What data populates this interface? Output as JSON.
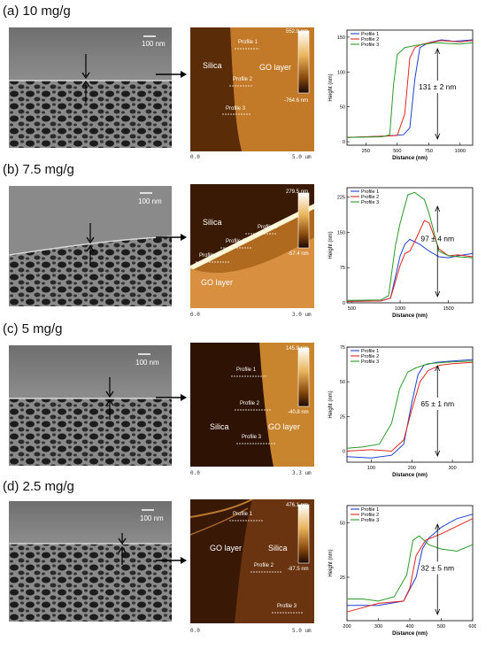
{
  "panels": [
    {
      "label": "(a) 10 mg/g",
      "sem_scale": "100 nm",
      "afm": {
        "max": "552.9 nm",
        "min": "-764.6 nm",
        "axis_left": "0.0",
        "axis_right": "5.0 um",
        "labels": [
          "Silica",
          "GO layer"
        ],
        "profiles": [
          "Profile 1",
          "Profile 2",
          "Profile 3"
        ]
      },
      "plot": {
        "legend": [
          "Profile 1",
          "Profile 2",
          "Profile 3"
        ],
        "annotation": "131 ± 2 nm",
        "xlabel": "Distance (nm)",
        "ylabel": "Height (nm)",
        "xticks": [
          "250",
          "500",
          "750",
          "1000"
        ],
        "yticks": [
          "0",
          "50",
          "100",
          "150"
        ]
      }
    },
    {
      "label": "(b) 7.5 mg/g",
      "sem_scale": "100 nm",
      "afm": {
        "max": "279.5 nm",
        "min": "-57.4 nm",
        "axis_left": "0.0",
        "axis_right": "3.0 um",
        "labels": [
          "Silica",
          "GO layer"
        ],
        "profiles": [
          "Profile 1",
          "Profile 2",
          "Profile 3"
        ]
      },
      "plot": {
        "legend": [
          "Profile 1",
          "Profile 2",
          "Profile 3"
        ],
        "annotation": "97 ± 4 nm",
        "xlabel": "Distance (nm)",
        "ylabel": "Height (nm)",
        "xticks": [
          "500",
          "1000",
          "1500"
        ],
        "yticks": [
          "0",
          "75",
          "150",
          "225"
        ]
      }
    },
    {
      "label": "(c) 5 mg/g",
      "sem_scale": "100 nm",
      "afm": {
        "max": "145.9 nm",
        "min": "-40.8 nm",
        "axis_left": "0.0",
        "axis_right": "3.3 um",
        "labels": [
          "Silica",
          "GO layer"
        ],
        "profiles": [
          "Profile 1",
          "Profile 2",
          "Profile 3"
        ]
      },
      "plot": {
        "legend": [
          "Profile 1",
          "Profile 2",
          "Profile 3"
        ],
        "annotation": "65 ± 1 nm",
        "xlabel": "Distance (nm)",
        "ylabel": "Height (nm)",
        "xticks": [
          "100",
          "200",
          "300"
        ],
        "yticks": [
          "0",
          "25",
          "50",
          "75"
        ]
      }
    },
    {
      "label": "(d) 2.5 mg/g",
      "sem_scale": "100 nm",
      "afm": {
        "max": "476.1 nm",
        "min": "-87.5 nm",
        "axis_left": "0.0",
        "axis_right": "5.0 um",
        "labels": [
          "GO layer",
          "Silica"
        ],
        "profiles": [
          "Profile 1",
          "Profile 2",
          "Profile 3"
        ]
      },
      "plot": {
        "legend": [
          "Profile 1",
          "Profile 2",
          "Profile 3"
        ],
        "annotation": "32 ± 5 nm",
        "xlabel": "Distance (nm)",
        "ylabel": "Height (nm)",
        "xticks": [
          "200",
          "300",
          "400",
          "500",
          "600"
        ],
        "yticks": [
          "25",
          "50"
        ]
      }
    }
  ],
  "colors": {
    "profile_1": "#1f3fd0",
    "profile_2": "#e0261e",
    "profile_3": "#2a9a2a"
  },
  "chart_data": [
    {
      "type": "line",
      "xlabel": "Distance (nm)",
      "ylabel": "Height (nm)",
      "xlim": [
        100,
        1100
      ],
      "ylim": [
        -5,
        160
      ],
      "series": [
        {
          "name": "Profile 1",
          "x": [
            100,
            400,
            550,
            600,
            640,
            680,
            750,
            850,
            950,
            1100
          ],
          "y": [
            6,
            8,
            10,
            20,
            90,
            135,
            142,
            146,
            144,
            146
          ]
        },
        {
          "name": "Profile 2",
          "x": [
            100,
            400,
            500,
            560,
            600,
            640,
            700,
            850,
            1000,
            1100
          ],
          "y": [
            6,
            8,
            9,
            40,
            120,
            135,
            140,
            145,
            143,
            145
          ]
        },
        {
          "name": "Profile 3",
          "x": [
            100,
            380,
            440,
            470,
            500,
            560,
            650,
            800,
            1000,
            1100
          ],
          "y": [
            6,
            7,
            10,
            80,
            125,
            135,
            138,
            142,
            140,
            142
          ]
        }
      ],
      "annotation": "131 ± 2 nm"
    },
    {
      "type": "line",
      "xlabel": "Distance (nm)",
      "ylabel": "Height (nm)",
      "xlim": [
        450,
        1750
      ],
      "ylim": [
        0,
        245
      ],
      "series": [
        {
          "name": "Profile 1",
          "x": [
            450,
            800,
            900,
            1000,
            1050,
            1100,
            1200,
            1300,
            1400,
            1500,
            1600,
            1750
          ],
          "y": [
            3,
            4,
            10,
            100,
            125,
            135,
            125,
            110,
            98,
            96,
            100,
            105
          ]
        },
        {
          "name": "Profile 2",
          "x": [
            450,
            800,
            900,
            1000,
            1050,
            1100,
            1150,
            1250,
            1300,
            1400,
            1500,
            1600,
            1750
          ],
          "y": [
            3,
            4,
            10,
            80,
            105,
            110,
            130,
            175,
            170,
            115,
            100,
            102,
            98
          ]
        },
        {
          "name": "Profile 3",
          "x": [
            450,
            800,
            880,
            950,
            1000,
            1080,
            1150,
            1250,
            1300,
            1350,
            1400,
            1500,
            1600,
            1750
          ],
          "y": [
            5,
            6,
            15,
            120,
            170,
            230,
            235,
            220,
            190,
            150,
            110,
            100,
            98,
            96
          ]
        }
      ],
      "annotation": "97 ± 4 nm"
    },
    {
      "type": "line",
      "xlabel": "Distance (nm)",
      "ylabel": "Height (nm)",
      "xlim": [
        40,
        350
      ],
      "ylim": [
        -8,
        75
      ],
      "series": [
        {
          "name": "Profile 1",
          "x": [
            40,
            100,
            150,
            180,
            200,
            215,
            230,
            260,
            300,
            350
          ],
          "y": [
            -4,
            -5,
            -3,
            5,
            35,
            55,
            62,
            64,
            65,
            66
          ]
        },
        {
          "name": "Profile 2",
          "x": [
            40,
            100,
            150,
            180,
            200,
            220,
            240,
            270,
            300,
            350
          ],
          "y": [
            0,
            1,
            0,
            8,
            30,
            50,
            58,
            62,
            63,
            64
          ]
        },
        {
          "name": "Profile 3",
          "x": [
            40,
            80,
            120,
            150,
            170,
            190,
            210,
            240,
            280,
            350
          ],
          "y": [
            2,
            3,
            5,
            20,
            45,
            57,
            60,
            63,
            64,
            65
          ]
        }
      ],
      "annotation": "65 ± 1 nm"
    },
    {
      "type": "line",
      "xlabel": "Distance (nm)",
      "ylabel": "Height (nm)",
      "xlim": [
        200,
        600
      ],
      "ylim": [
        5,
        58
      ],
      "series": [
        {
          "name": "Profile 1",
          "x": [
            200,
            300,
            380,
            420,
            440,
            460,
            500,
            550,
            600
          ],
          "y": [
            12,
            12,
            14,
            25,
            38,
            43,
            48,
            52,
            54
          ]
        },
        {
          "name": "Profile 2",
          "x": [
            200,
            250,
            300,
            380,
            400,
            420,
            450,
            500,
            600
          ],
          "y": [
            9,
            11,
            13,
            14,
            20,
            35,
            42,
            45,
            52
          ]
        },
        {
          "name": "Profile 3",
          "x": [
            200,
            250,
            300,
            350,
            390,
            410,
            430,
            460,
            500,
            550,
            600
          ],
          "y": [
            15,
            15,
            14,
            16,
            26,
            42,
            44,
            40,
            38,
            37,
            40
          ]
        }
      ],
      "annotation": "32 ± 5 nm"
    }
  ]
}
